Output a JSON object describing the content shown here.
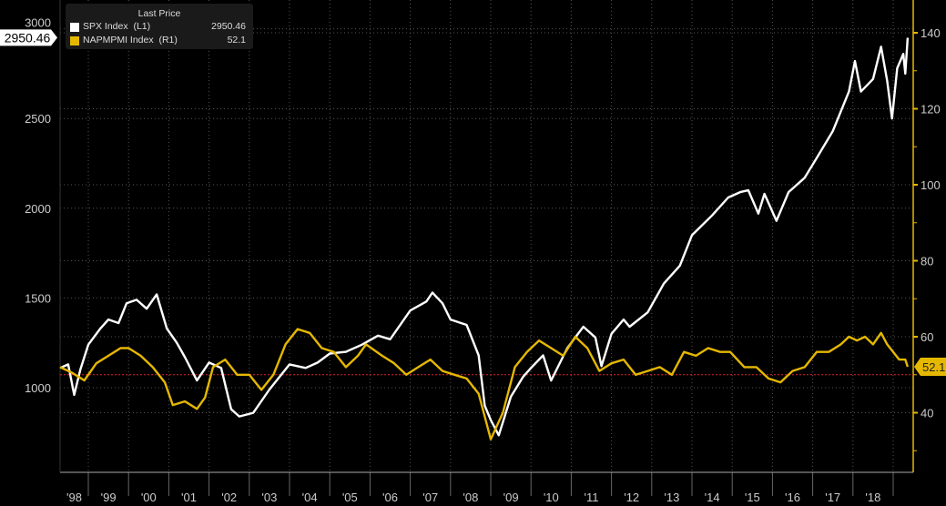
{
  "chart_data": {
    "type": "line",
    "legend": {
      "title": "Last Price",
      "placement": "top-left"
    },
    "x_ticks": [
      "'98",
      "'99",
      "'00",
      "'01",
      "'02",
      "'03",
      "'04",
      "'05",
      "'06",
      "'07",
      "'08",
      "'09",
      "'10",
      "'11",
      "'12",
      "'13",
      "'14",
      "'15",
      "'16",
      "'17",
      "'18"
    ],
    "xlim": [
      1998.3,
      2019.5
    ],
    "left_axis": {
      "ticks": [
        1000,
        1500,
        2000,
        2500,
        3000
      ],
      "ylim": [
        650,
        3030
      ]
    },
    "right_axis": {
      "ticks": [
        40,
        60,
        80,
        100,
        120,
        140
      ],
      "ylim": [
        30,
        141
      ]
    },
    "reference_line": {
      "value": 50,
      "axis": "right",
      "color": "#e0202a"
    },
    "series": [
      {
        "name": "SPX Index",
        "axis_label": "(L1)",
        "last": "2950.46",
        "axis": "left",
        "color": "#ffffff",
        "x": [
          1998.3,
          1998.5,
          1998.65,
          1998.8,
          1999.0,
          1999.3,
          1999.5,
          1999.75,
          1999.95,
          2000.2,
          2000.45,
          2000.7,
          2000.95,
          2001.2,
          2001.4,
          2001.7,
          2002.0,
          2002.3,
          2002.55,
          2002.75,
          2003.1,
          2003.5,
          2004.0,
          2004.4,
          2004.7,
          2005.0,
          2005.4,
          2005.8,
          2006.2,
          2006.5,
          2007.0,
          2007.4,
          2007.55,
          2007.8,
          2008.0,
          2008.4,
          2008.7,
          2008.85,
          2009.0,
          2009.2,
          2009.5,
          2009.8,
          2010.0,
          2010.3,
          2010.5,
          2010.9,
          2011.3,
          2011.6,
          2011.75,
          2012.0,
          2012.3,
          2012.45,
          2012.9,
          2013.3,
          2013.7,
          2014.0,
          2014.5,
          2014.9,
          2015.2,
          2015.4,
          2015.65,
          2015.8,
          2016.1,
          2016.4,
          2016.8,
          2017.1,
          2017.5,
          2017.9,
          2018.05,
          2018.2,
          2018.5,
          2018.7,
          2018.85,
          2018.97,
          2019.1,
          2019.25,
          2019.3,
          2019.36
        ],
        "values": [
          1110,
          1130,
          960,
          1100,
          1240,
          1330,
          1380,
          1360,
          1470,
          1490,
          1440,
          1520,
          1330,
          1250,
          1170,
          1040,
          1140,
          1110,
          880,
          840,
          860,
          990,
          1130,
          1110,
          1140,
          1190,
          1200,
          1240,
          1290,
          1270,
          1430,
          1480,
          1530,
          1470,
          1380,
          1350,
          1180,
          900,
          820,
          735,
          950,
          1060,
          1110,
          1180,
          1040,
          1220,
          1340,
          1280,
          1120,
          1300,
          1380,
          1340,
          1420,
          1580,
          1680,
          1850,
          1960,
          2060,
          2090,
          2100,
          1970,
          2080,
          1930,
          2090,
          2170,
          2280,
          2430,
          2650,
          2820,
          2650,
          2720,
          2900,
          2710,
          2500,
          2780,
          2860,
          2750,
          2950
        ]
      },
      {
        "name": "NAPMPMI Index",
        "axis_label": "(R1)",
        "last": "52.1",
        "axis": "right",
        "color": "#e5b800",
        "x": [
          1998.3,
          1998.6,
          1998.9,
          1999.2,
          1999.5,
          1999.8,
          2000.0,
          2000.3,
          2000.6,
          2000.9,
          2001.1,
          2001.4,
          2001.7,
          2001.9,
          2002.1,
          2002.4,
          2002.7,
          2003.0,
          2003.3,
          2003.6,
          2003.9,
          2004.2,
          2004.5,
          2004.8,
          2005.1,
          2005.4,
          2005.7,
          2005.9,
          2006.3,
          2006.6,
          2006.9,
          2007.2,
          2007.5,
          2007.8,
          2008.1,
          2008.4,
          2008.7,
          2008.9,
          2009.0,
          2009.3,
          2009.6,
          2009.9,
          2010.2,
          2010.5,
          2010.8,
          2011.1,
          2011.4,
          2011.7,
          2012.0,
          2012.3,
          2012.6,
          2012.9,
          2013.2,
          2013.5,
          2013.8,
          2014.1,
          2014.4,
          2014.7,
          2014.95,
          2015.3,
          2015.6,
          2015.9,
          2016.2,
          2016.5,
          2016.8,
          2017.1,
          2017.4,
          2017.7,
          2017.9,
          2018.1,
          2018.3,
          2018.5,
          2018.7,
          2018.85,
          2019.0,
          2019.15,
          2019.3,
          2019.36
        ],
        "values": [
          52,
          50.5,
          48.5,
          53,
          55,
          57,
          57,
          55,
          52,
          48,
          42,
          43,
          41,
          44,
          52,
          54,
          50,
          50,
          46,
          50,
          58,
          62,
          61,
          57,
          56,
          52,
          55,
          58,
          55,
          53,
          50,
          52,
          54,
          51,
          50,
          49,
          45,
          37,
          33,
          40,
          52,
          56,
          59,
          57,
          55,
          60,
          57,
          51,
          53,
          54,
          50,
          51,
          52,
          50,
          56,
          55,
          57,
          56,
          56,
          52,
          52,
          49,
          48,
          51,
          52,
          56,
          56,
          58,
          60,
          59,
          60,
          58,
          61,
          58,
          56,
          54,
          54,
          52.1
        ]
      }
    ]
  }
}
